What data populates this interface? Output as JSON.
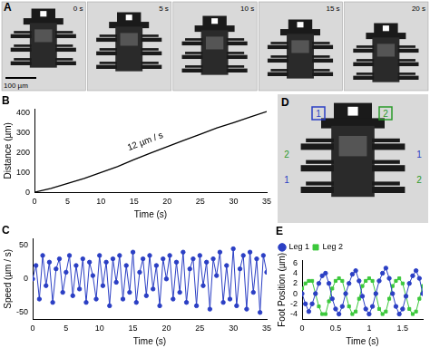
{
  "panel_A": {
    "label": "A",
    "frame_times": [
      "0 s",
      "5 s",
      "10 s",
      "15 s",
      "20 s"
    ],
    "scale_bar": "100 µm"
  },
  "panel_D": {
    "label": "D",
    "markers": [
      "1",
      "2"
    ],
    "legs": [
      [
        "2",
        "1"
      ],
      [
        "1",
        "2"
      ]
    ]
  },
  "chart_data": [
    {
      "type": "line",
      "title": "B",
      "xlabel": "Time (s)",
      "ylabel": "Distance (µm)",
      "annotation": "12 µm / s",
      "x": [
        0,
        2.5,
        5,
        7.5,
        10,
        12.5,
        15,
        17.5,
        20,
        22.5,
        25,
        27.5,
        30,
        32.5,
        35
      ],
      "values": [
        0,
        20,
        45,
        70,
        100,
        130,
        165,
        198,
        230,
        262,
        293,
        325,
        352,
        380,
        408
      ],
      "color": "#000000",
      "xlim": [
        0,
        35
      ],
      "xticks": [
        0,
        5,
        10,
        15,
        20,
        25,
        30,
        35
      ],
      "ylim": [
        0,
        420
      ],
      "yticks": [
        0,
        100,
        200,
        300,
        400
      ],
      "grid": false
    },
    {
      "type": "line",
      "title": "C",
      "xlabel": "Time (s)",
      "ylabel": "Speed (µm / s)",
      "x": [
        0,
        0.5,
        1,
        1.5,
        2,
        2.5,
        3,
        3.5,
        4,
        4.5,
        5,
        5.5,
        6,
        6.5,
        7,
        7.5,
        8,
        8.5,
        9,
        9.5,
        10,
        10.5,
        11,
        11.5,
        12,
        12.5,
        13,
        13.5,
        14,
        14.5,
        15,
        15.5,
        16,
        16.5,
        17,
        17.5,
        18,
        18.5,
        19,
        19.5,
        20,
        20.5,
        21,
        21.5,
        22,
        22.5,
        23,
        23.5,
        24,
        24.5,
        25,
        25.5,
        26,
        26.5,
        27,
        27.5,
        28,
        28.5,
        29,
        29.5,
        30,
        30.5,
        31,
        31.5,
        32,
        32.5,
        33,
        33.5,
        34,
        34.5,
        35
      ],
      "values": [
        0,
        20,
        -30,
        35,
        -10,
        25,
        -35,
        15,
        30,
        -20,
        10,
        35,
        -25,
        20,
        -15,
        30,
        -35,
        25,
        5,
        -30,
        35,
        -10,
        25,
        -40,
        30,
        -5,
        35,
        -30,
        20,
        -20,
        40,
        -35,
        10,
        30,
        -25,
        35,
        -15,
        20,
        -40,
        30,
        0,
        35,
        -30,
        25,
        -20,
        40,
        -35,
        15,
        30,
        -40,
        35,
        -10,
        25,
        -45,
        30,
        5,
        40,
        -35,
        20,
        -30,
        45,
        -40,
        15,
        35,
        -45,
        40,
        -20,
        30,
        -50,
        35,
        10
      ],
      "color": "#2b3fc4",
      "marker": "circle",
      "xlim": [
        0,
        35
      ],
      "xticks": [
        0,
        5,
        10,
        15,
        20,
        25,
        30,
        35
      ],
      "ylim": [
        -60,
        60
      ],
      "yticks": [
        -50,
        0,
        50
      ],
      "grid": false
    },
    {
      "type": "line",
      "title": "E",
      "xlabel": "Time (s)",
      "ylabel": "Foot Position (µm)",
      "legend": "top-left",
      "x": [
        0,
        0.05,
        0.1,
        0.15,
        0.2,
        0.25,
        0.3,
        0.35,
        0.4,
        0.45,
        0.5,
        0.55,
        0.6,
        0.65,
        0.7,
        0.75,
        0.8,
        0.85,
        0.9,
        0.95,
        1,
        1.05,
        1.1,
        1.15,
        1.2,
        1.25,
        1.3,
        1.35,
        1.4,
        1.45,
        1.5,
        1.55,
        1.6,
        1.65,
        1.7,
        1.75,
        1.8
      ],
      "series": [
        {
          "name": "Leg 1",
          "color": "#2b3fc4",
          "marker": "circle",
          "values": [
            0,
            -2,
            -3.5,
            -2,
            0,
            2,
            3.5,
            4,
            2,
            -1,
            -3,
            -4,
            -2.5,
            0,
            2,
            3.8,
            4.5,
            2.5,
            -0.5,
            -3,
            -4,
            -2.5,
            0,
            2.5,
            4,
            5,
            3,
            0,
            -2.5,
            -4,
            -3,
            -0.5,
            2,
            3.5,
            4.5,
            3,
            0
          ]
        },
        {
          "name": "Leg 2",
          "color": "#3cc83c",
          "marker": "square",
          "values": [
            1,
            2,
            2.5,
            2.5,
            0,
            -2.5,
            -4,
            -4,
            -1.5,
            1,
            2.5,
            3,
            2.5,
            0,
            -2.5,
            -4,
            -3.5,
            -1,
            1.5,
            2.5,
            3,
            2.5,
            0,
            -3,
            -4,
            -3.5,
            -1,
            1.5,
            2.5,
            3,
            2,
            -0.5,
            -3,
            -4,
            -3.5,
            -1,
            1.5
          ]
        }
      ],
      "xlim": [
        0,
        1.8
      ],
      "xticks": [
        0,
        0.5,
        1,
        1.5
      ],
      "ylim": [
        -5,
        6.5
      ],
      "yticks": [
        -4,
        -2,
        0,
        2,
        4,
        6
      ],
      "grid": false
    }
  ]
}
